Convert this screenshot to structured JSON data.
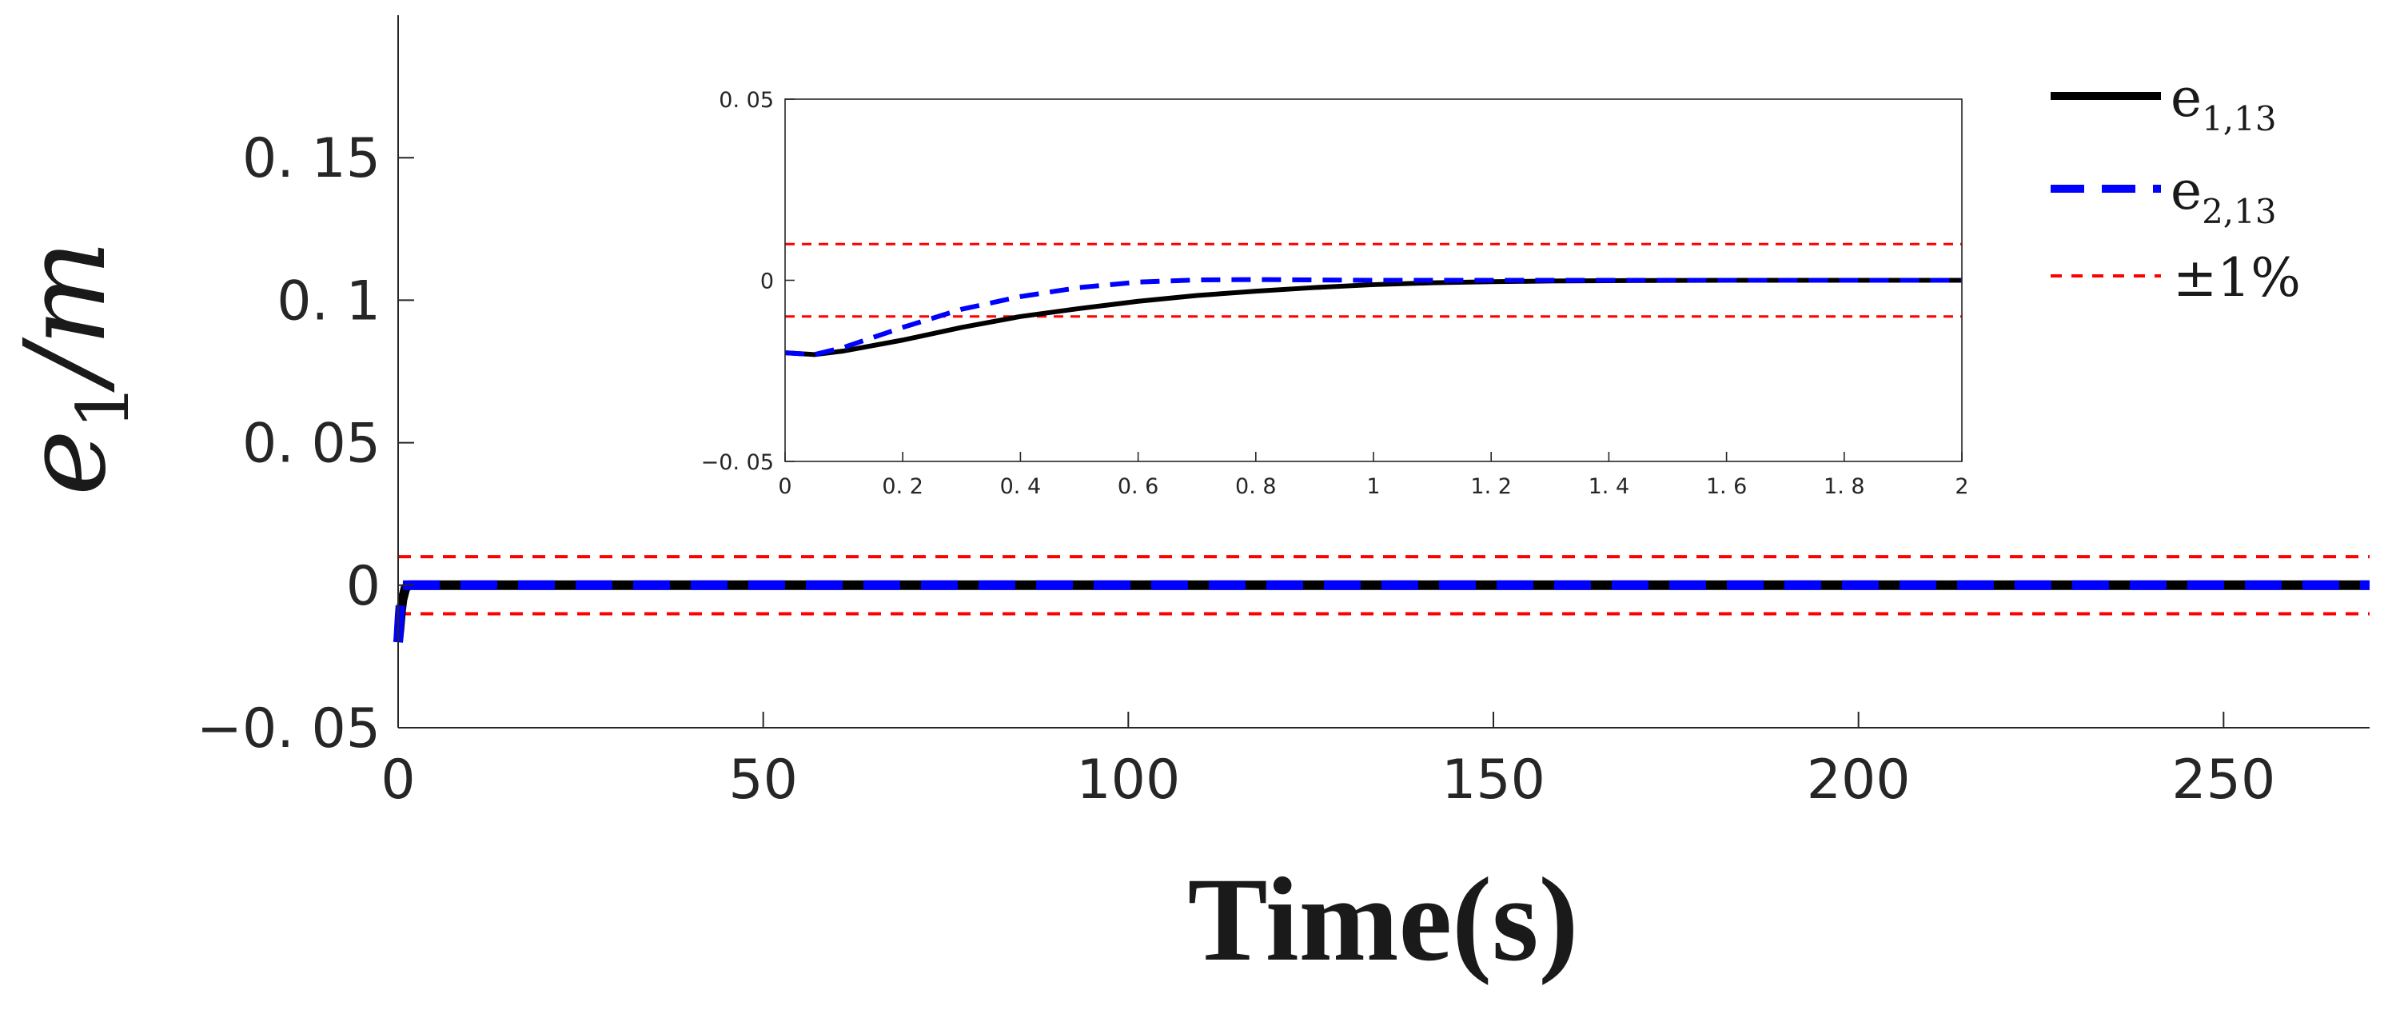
{
  "chart_data": {
    "type": "line",
    "xlabel": "Time(s)",
    "ylabel": {
      "base": "e",
      "sub": "1",
      "unit": "/m"
    },
    "colors": {
      "e1": "#000000",
      "e2": "#0000ff",
      "bound": "#ff0000"
    },
    "main": {
      "xlim": [
        0,
        270
      ],
      "ylim": [
        -0.05,
        0.2
      ],
      "xticks": [
        0,
        50,
        100,
        150,
        200,
        250
      ],
      "xticklabels": [
        "0",
        "50",
        "100",
        "150",
        "200",
        "250"
      ],
      "yticks": [
        -0.05,
        0,
        0.05,
        0.1,
        0.15
      ],
      "yticklabels": [
        "−0. 05",
        "0",
        "0. 05",
        "0. 1",
        "0. 15"
      ],
      "bounds": [
        0.01,
        -0.01
      ],
      "series": [
        {
          "name": "e1,13",
          "x": [
            0,
            0.2,
            0.4,
            0.6,
            1,
            1.5,
            2,
            3,
            270
          ],
          "values": [
            -0.02,
            -0.015,
            -0.009,
            -0.005,
            -0.001,
            0,
            0,
            0,
            0
          ]
        },
        {
          "name": "e2,13",
          "x": [
            0,
            0.2,
            0.4,
            0.6,
            1,
            1.5,
            2,
            3,
            270
          ],
          "values": [
            -0.02,
            -0.011,
            -0.004,
            0,
            0,
            0,
            0,
            0,
            0
          ]
        }
      ]
    },
    "inset": {
      "xlim": [
        0,
        2
      ],
      "ylim": [
        -0.05,
        0.05
      ],
      "xticks": [
        0,
        0.2,
        0.4,
        0.6,
        0.8,
        1,
        1.2,
        1.4,
        1.6,
        1.8,
        2
      ],
      "xticklabels": [
        "0",
        "0. 2",
        "0. 4",
        "0. 6",
        "0. 8",
        "1",
        "1. 2",
        "1. 4",
        "1. 6",
        "1. 8",
        "2"
      ],
      "yticks": [
        -0.05,
        0,
        0.05
      ],
      "yticklabels": [
        "−0. 05",
        "0",
        "0. 05"
      ],
      "bounds": [
        0.01,
        -0.01
      ],
      "series": [
        {
          "name": "e1,13",
          "x": [
            0,
            0.05,
            0.1,
            0.2,
            0.3,
            0.4,
            0.5,
            0.6,
            0.7,
            0.8,
            0.9,
            1.0,
            1.1,
            1.2,
            1.3,
            1.4,
            1.6,
            1.8,
            2.0
          ],
          "values": [
            -0.02,
            -0.0205,
            -0.0195,
            -0.0165,
            -0.013,
            -0.01,
            -0.0078,
            -0.0058,
            -0.0042,
            -0.003,
            -0.002,
            -0.0012,
            -0.0007,
            -0.0004,
            -0.0002,
            -0.0001,
            0,
            0,
            0
          ]
        },
        {
          "name": "e2,13",
          "x": [
            0,
            0.05,
            0.1,
            0.2,
            0.3,
            0.4,
            0.5,
            0.6,
            0.7,
            0.8,
            0.9,
            1.0,
            1.2,
            1.4,
            1.6,
            1.8,
            2.0
          ],
          "values": [
            -0.02,
            -0.0205,
            -0.0185,
            -0.013,
            -0.008,
            -0.0045,
            -0.002,
            -0.0005,
            0.0001,
            0.0002,
            0.0001,
            0,
            0,
            0,
            0,
            0,
            0
          ]
        }
      ]
    },
    "legend": {
      "location": "top-right",
      "entries": [
        {
          "base": "e",
          "sub": "1,13",
          "style": "solid"
        },
        {
          "base": "e",
          "sub": "2,13",
          "style": "dashed"
        },
        {
          "label": "±1%",
          "style": "dotted"
        }
      ]
    }
  }
}
